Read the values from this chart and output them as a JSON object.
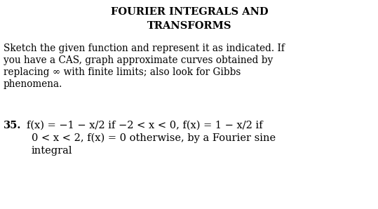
{
  "background_color": "#ffffff",
  "title_line1": "FOURIER INTEGRALS AND",
  "title_line2": "TRANSFORMS",
  "title_fontsize": 10.5,
  "body_fontsize": 9.8,
  "body_text_line1": "Sketch the given function and represent it as indicated. If",
  "body_text_line2": "you have a CAS, graph approximate curves obtained by",
  "body_text_line3": "replacing ∞ with finite limits; also look for Gibbs",
  "body_text_line4": "phenomena.",
  "problem_number": "35.",
  "problem_number_fontsize": 10.5,
  "problem_line1": "f(x) = −1 − x/2 if −2 < x < 0, f(x) = 1 − x/2 if",
  "problem_line2": "0 < x < 2, f(x) = 0 otherwise, by a Fourier sine",
  "problem_line3": "integral",
  "problem_fontsize": 10.5,
  "text_color": "#000000",
  "serif_font": "DejaVu Serif"
}
